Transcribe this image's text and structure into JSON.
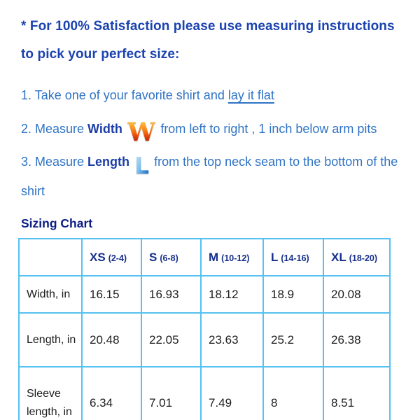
{
  "colors": {
    "heading_blue": "#1b43b0",
    "body_blue": "#2f73c5",
    "bold_word_blue": "#1b3da8",
    "title_navy": "#0b1c85",
    "table_header_navy": "#162f8c",
    "table_border_blue": "#56c2f1",
    "cell_text": "#1d1d1f",
    "w_icon_gradient_top": "#ffd24f",
    "w_icon_gradient_bottom": "#a81200",
    "l_icon_gradient_top": "#d4ecfb",
    "l_icon_gradient_bottom": "#1e66b8"
  },
  "heading": {
    "line1": "* For 100% Satisfaction please use measuring instructions",
    "line2": "to pick your perfect size:"
  },
  "steps": [
    {
      "prefix": "1. Take one of your favorite shirt and ",
      "underlined": "lay it flat"
    },
    {
      "prefix": "2. Measure ",
      "bold": "Width",
      "icon": "W",
      "suffix": "from left to right , 1 inch below arm pits"
    },
    {
      "prefix": "3. Measure ",
      "bold": "Length",
      "icon": "L",
      "suffix": "from the top neck seam to the bottom of the shirt"
    }
  ],
  "sizing_chart": {
    "title": "Sizing Chart",
    "columns": [
      {
        "size": "XS",
        "range": "(2-4)"
      },
      {
        "size": "S",
        "range": "(6-8)"
      },
      {
        "size": "M",
        "range": "(10-12)"
      },
      {
        "size": "L",
        "range": "(14-16)"
      },
      {
        "size": "XL",
        "range": "(18-20)"
      }
    ],
    "rows": [
      {
        "label": "Width, in",
        "values": [
          "16.15",
          "16.93",
          "18.12",
          "18.9",
          "20.08"
        ]
      },
      {
        "label": "Length, in",
        "values": [
          "20.48",
          "22.05",
          "23.63",
          "25.2",
          "26.38"
        ]
      },
      {
        "label": "Sleeve length, in",
        "values": [
          "6.34",
          "7.01",
          "7.49",
          "8",
          "8.51"
        ]
      }
    ]
  }
}
